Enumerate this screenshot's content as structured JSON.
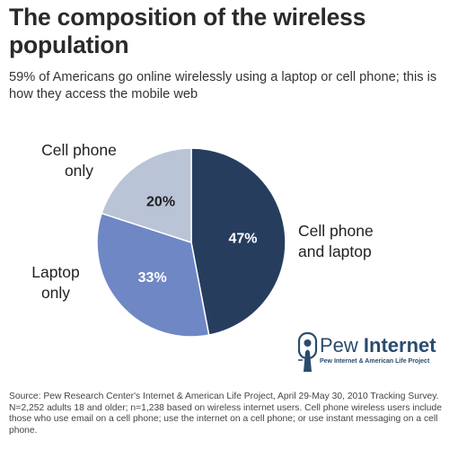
{
  "header": {
    "title": "The composition of the wireless population",
    "subtitle": "59% of Americans go online wirelessly using a laptop or cell phone; this is how they access the mobile web"
  },
  "chart_data": {
    "type": "pie",
    "categories": [
      "Cell phone and laptop",
      "Laptop only",
      "Cell phone only"
    ],
    "values": [
      47,
      33,
      20
    ],
    "value_labels": [
      "47%",
      "33%",
      "20%"
    ],
    "colors": [
      "#263d5e",
      "#6f87c4",
      "#b9c4d6"
    ],
    "label_colors": [
      "#ffffff",
      "#ffffff",
      "#1f1f1f"
    ]
  },
  "labels": {
    "cell_laptop": [
      "Cell phone",
      "and laptop"
    ],
    "laptop_only": [
      "Laptop",
      "only"
    ],
    "cell_only": [
      "Cell phone",
      "only"
    ]
  },
  "logo": {
    "name_light": "Pew",
    "name_bold": "Internet",
    "tagline": "Pew Internet & American Life Project",
    "color": "#2b4b6e"
  },
  "footer": {
    "source": "Source: Pew Research Center's Internet & American Life Project, April 29-May 30, 2010 Tracking Survey. N=2,252 adults 18 and older; n=1,238 based on wireless internet users. Cell phone wireless users include those who use email on a cell phone; use the internet on a cell phone; or use instant messaging on a cell phone."
  }
}
